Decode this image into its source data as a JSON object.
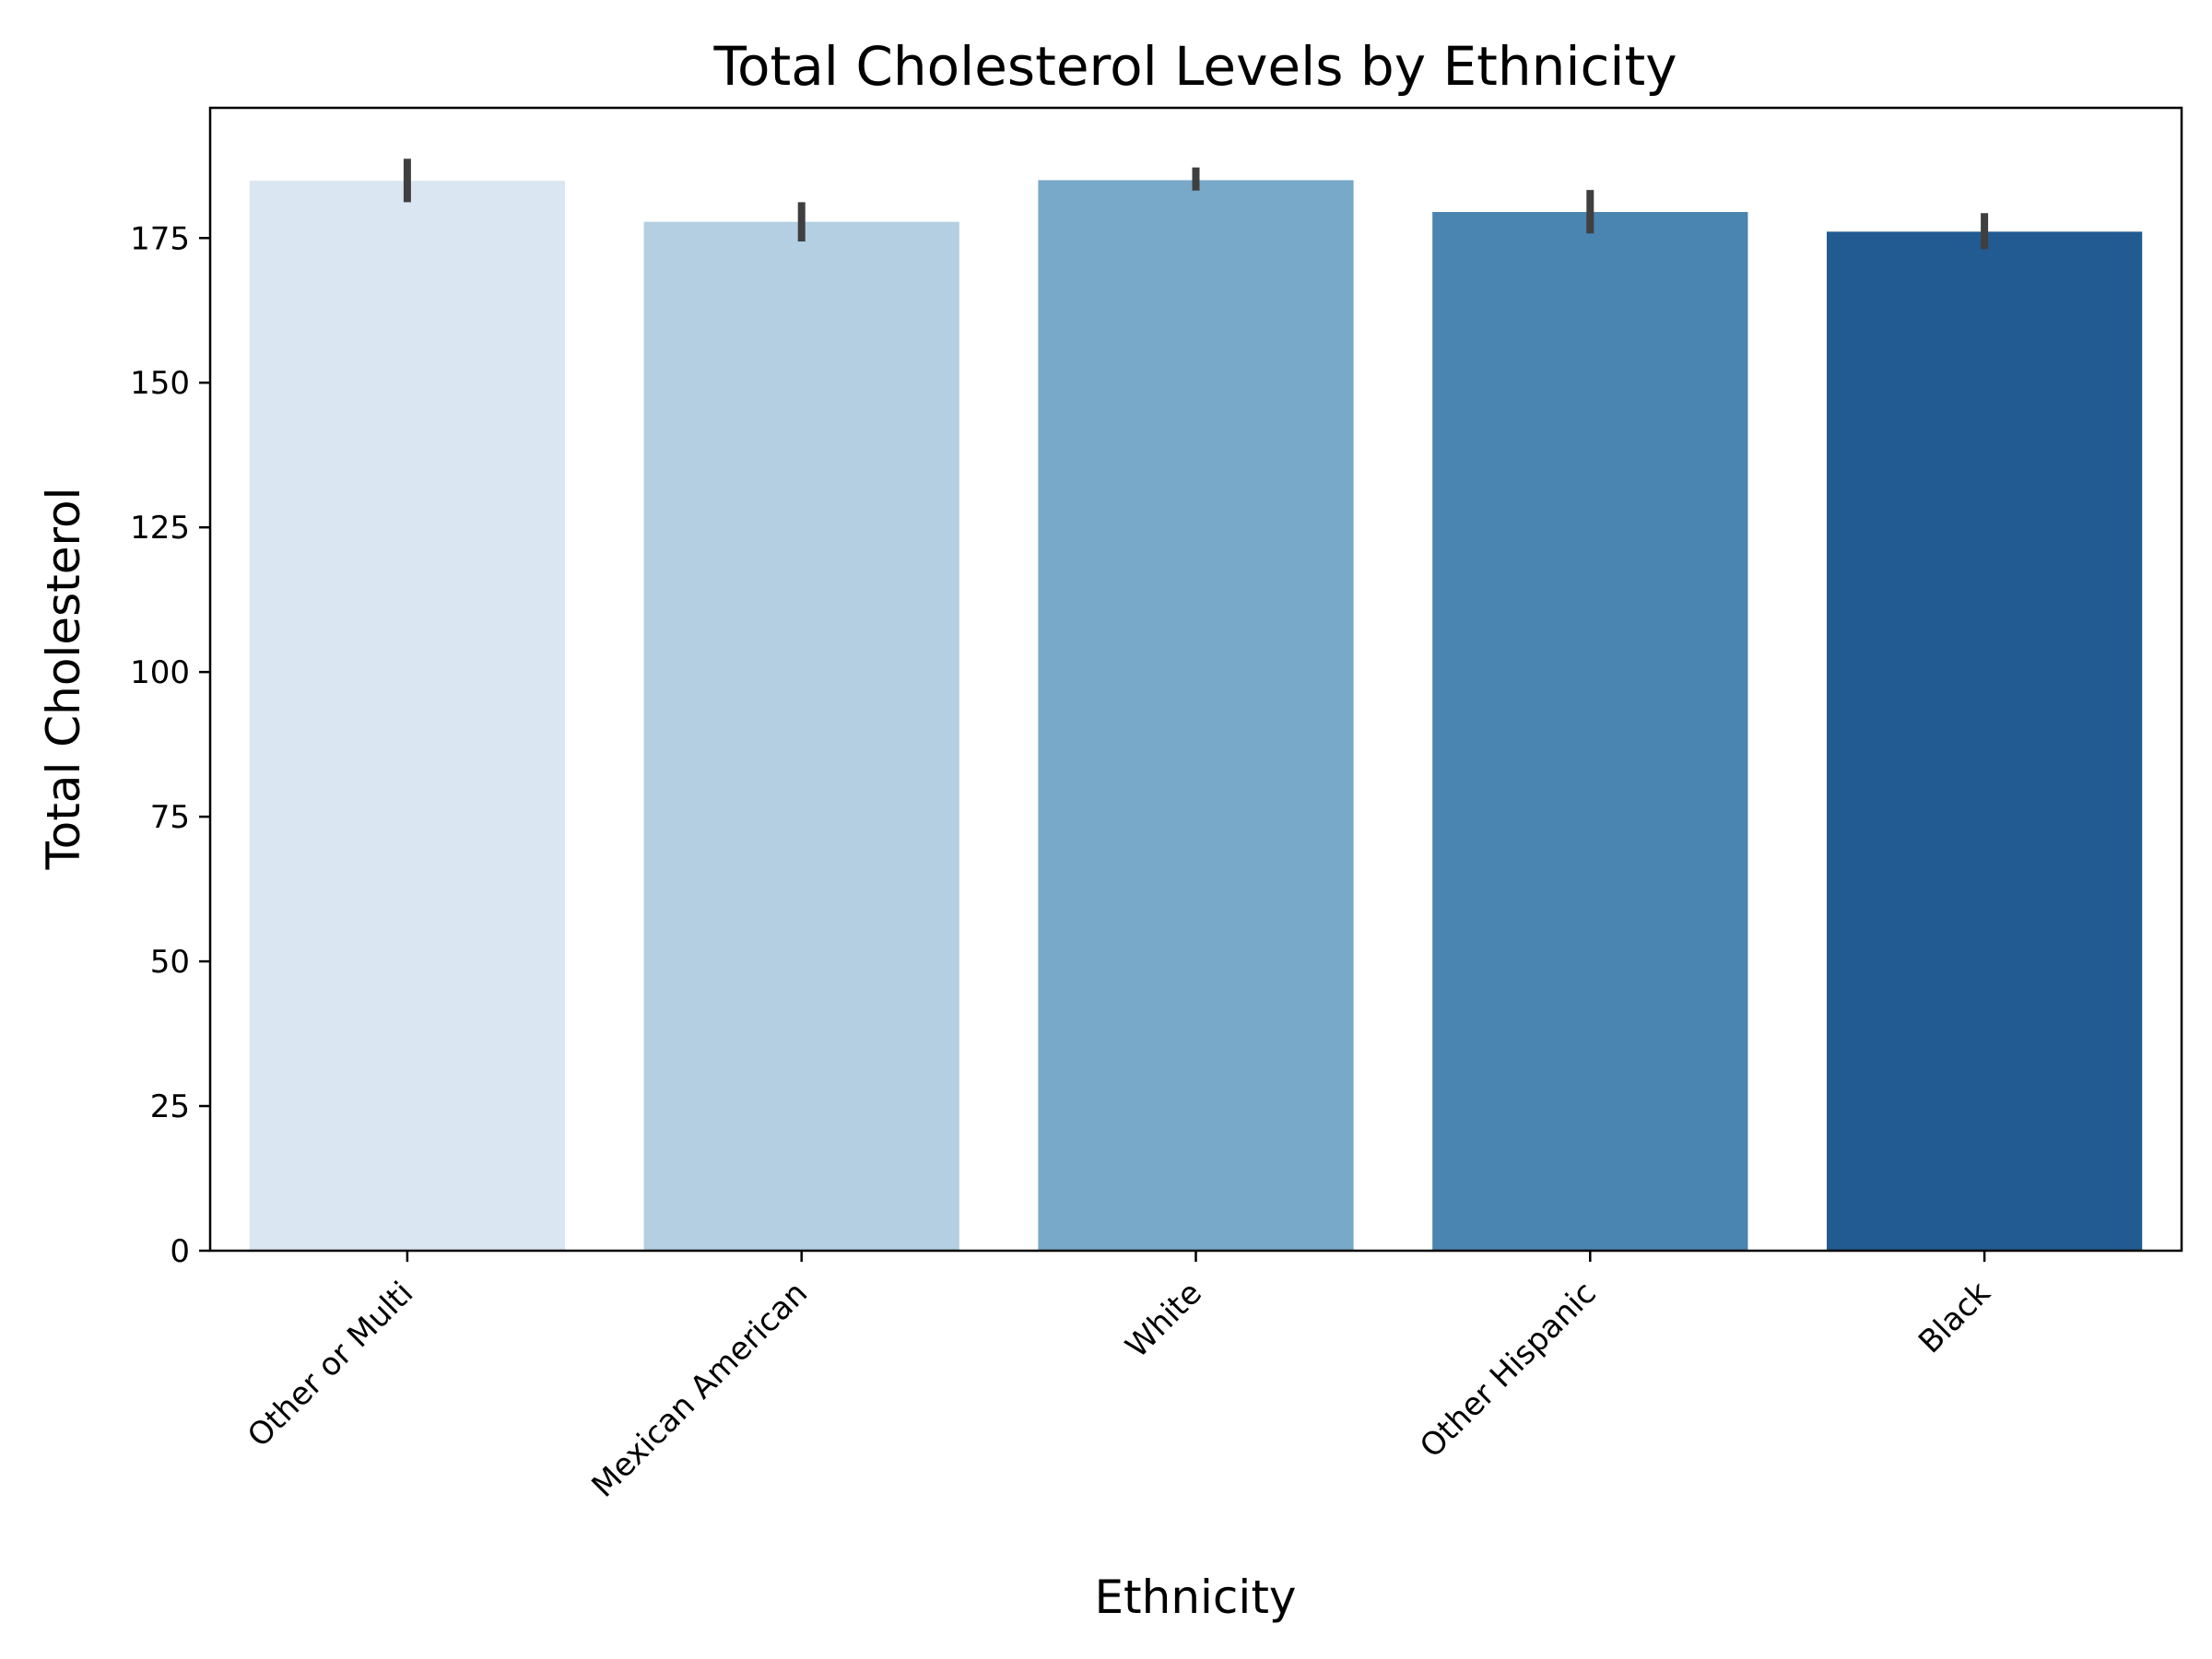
{
  "chart_data": {
    "type": "bar",
    "title": "Total Cholesterol Levels by Ethnicity",
    "xlabel": "Ethnicity",
    "ylabel": "Total Cholesterol",
    "categories": [
      "Other or Multi",
      "Mexican American",
      "White",
      "Other Hispanic",
      "Black"
    ],
    "values": [
      184.9,
      177.8,
      185.0,
      179.5,
      176.1
    ],
    "error_low": [
      181.2,
      174.4,
      183.2,
      175.8,
      173.1
    ],
    "error_high": [
      188.7,
      181.2,
      187.2,
      183.3,
      179.3
    ],
    "ylim": [
      0,
      197.5
    ],
    "yticks": [
      0,
      25,
      50,
      75,
      100,
      125,
      150,
      175
    ],
    "grid": false,
    "colors": [
      "#dae6f2",
      "#b3cfe1",
      "#78a9c8",
      "#4a84b0",
      "#225b91"
    ],
    "error_color": "#3f3f3f"
  }
}
